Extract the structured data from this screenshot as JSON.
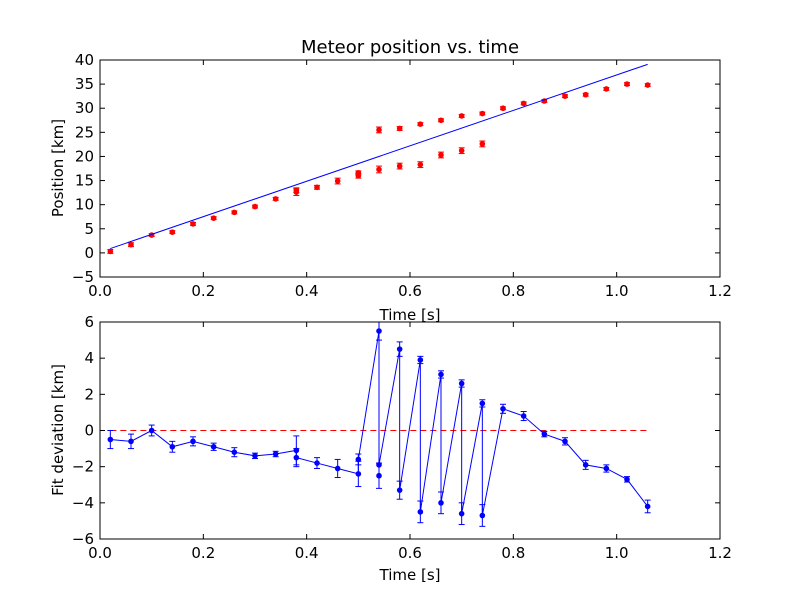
{
  "chart_data": [
    {
      "type": "scatter",
      "title": "Meteor position vs. time",
      "xlabel": "Time [s]",
      "ylabel": "Position [km]",
      "xlim": [
        0.0,
        1.2
      ],
      "ylim": [
        -5,
        40
      ],
      "xticks": [
        "0.0",
        "0.2",
        "0.4",
        "0.6",
        "0.8",
        "1.0",
        "1.2"
      ],
      "yticks": [
        "−5",
        "0",
        "5",
        "10",
        "15",
        "20",
        "25",
        "30",
        "35",
        "40"
      ],
      "grid": false,
      "series": [
        {
          "style": "points-with-errorbars",
          "color": "#ff0000",
          "points": [
            {
              "x": 0.02,
              "y": 0.3,
              "err": 0.4
            },
            {
              "x": 0.06,
              "y": 1.7,
              "err": 0.4
            },
            {
              "x": 0.1,
              "y": 3.7,
              "err": 0.3
            },
            {
              "x": 0.14,
              "y": 4.3,
              "err": 0.3
            },
            {
              "x": 0.18,
              "y": 6.0,
              "err": 0.3
            },
            {
              "x": 0.22,
              "y": 7.2,
              "err": 0.3
            },
            {
              "x": 0.26,
              "y": 8.4,
              "err": 0.3
            },
            {
              "x": 0.3,
              "y": 9.6,
              "err": 0.3
            },
            {
              "x": 0.34,
              "y": 11.2,
              "err": 0.3
            },
            {
              "x": 0.38,
              "y": 12.6,
              "err": 0.7
            },
            {
              "x": 0.38,
              "y": 13.0,
              "err": 0.5
            },
            {
              "x": 0.42,
              "y": 13.6,
              "err": 0.4
            },
            {
              "x": 0.46,
              "y": 14.9,
              "err": 0.6
            },
            {
              "x": 0.5,
              "y": 16.0,
              "err": 0.5
            },
            {
              "x": 0.5,
              "y": 16.6,
              "err": 0.4
            },
            {
              "x": 0.54,
              "y": 17.3,
              "err": 0.7
            },
            {
              "x": 0.54,
              "y": 25.5,
              "err": 0.6
            },
            {
              "x": 0.58,
              "y": 18.0,
              "err": 0.6
            },
            {
              "x": 0.58,
              "y": 25.8,
              "err": 0.4
            },
            {
              "x": 0.62,
              "y": 18.3,
              "err": 0.6
            },
            {
              "x": 0.62,
              "y": 26.7,
              "err": 0.3
            },
            {
              "x": 0.66,
              "y": 20.3,
              "err": 0.6
            },
            {
              "x": 0.66,
              "y": 27.5,
              "err": 0.3
            },
            {
              "x": 0.7,
              "y": 21.2,
              "err": 0.6
            },
            {
              "x": 0.7,
              "y": 28.4,
              "err": 0.3
            },
            {
              "x": 0.74,
              "y": 22.6,
              "err": 0.6
            },
            {
              "x": 0.74,
              "y": 28.9,
              "err": 0.3
            },
            {
              "x": 0.78,
              "y": 30.0,
              "err": 0.3
            },
            {
              "x": 0.82,
              "y": 31.0,
              "err": 0.3
            },
            {
              "x": 0.86,
              "y": 31.5,
              "err": 0.3
            },
            {
              "x": 0.9,
              "y": 32.5,
              "err": 0.3
            },
            {
              "x": 0.94,
              "y": 32.8,
              "err": 0.3
            },
            {
              "x": 0.98,
              "y": 34.0,
              "err": 0.3
            },
            {
              "x": 1.02,
              "y": 35.0,
              "err": 0.3
            },
            {
              "x": 1.06,
              "y": 34.8,
              "err": 0.3
            }
          ]
        },
        {
          "style": "line",
          "color": "#0000ff",
          "points": [
            {
              "x": 0.02,
              "y": 0.9
            },
            {
              "x": 1.06,
              "y": 39.1
            }
          ]
        }
      ]
    },
    {
      "type": "line",
      "xlabel": "Time [s]",
      "ylabel": "Fit deviation [km]",
      "xlim": [
        0.0,
        1.2
      ],
      "ylim": [
        -6,
        6
      ],
      "xticks": [
        "0.0",
        "0.2",
        "0.4",
        "0.6",
        "0.8",
        "1.0",
        "1.2"
      ],
      "yticks": [
        "−6",
        "−4",
        "−2",
        "0",
        "2",
        "4",
        "6"
      ],
      "grid": false,
      "reference_line": {
        "y": 0,
        "x_from": 0.02,
        "x_to": 1.06,
        "style": "dashed",
        "color": "#ff0000"
      },
      "series": [
        {
          "style": "line-points-errorbars",
          "color": "#0000ff",
          "points": [
            {
              "x": 0.02,
              "y": -0.5,
              "err": 0.5
            },
            {
              "x": 0.06,
              "y": -0.6,
              "err": 0.4
            },
            {
              "x": 0.1,
              "y": 0.0,
              "err": 0.3
            },
            {
              "x": 0.14,
              "y": -0.9,
              "err": 0.3
            },
            {
              "x": 0.18,
              "y": -0.6,
              "err": 0.25
            },
            {
              "x": 0.22,
              "y": -0.9,
              "err": 0.2
            },
            {
              "x": 0.26,
              "y": -1.2,
              "err": 0.25
            },
            {
              "x": 0.3,
              "y": -1.4,
              "err": 0.15
            },
            {
              "x": 0.34,
              "y": -1.3,
              "err": 0.15
            },
            {
              "x": 0.38,
              "y": -1.1,
              "err": 0.8
            },
            {
              "x": 0.38,
              "y": -1.5,
              "err": 0.5
            },
            {
              "x": 0.42,
              "y": -1.8,
              "err": 0.3
            },
            {
              "x": 0.46,
              "y": -2.1,
              "err": 0.5
            },
            {
              "x": 0.5,
              "y": -2.4,
              "err": 0.7
            },
            {
              "x": 0.5,
              "y": -1.6,
              "err": 0.3
            },
            {
              "x": 0.54,
              "y": 5.5,
              "err": 0.5
            },
            {
              "x": 0.54,
              "y": -2.5,
              "err": 0.7
            },
            {
              "x": 0.54,
              "y": -1.9,
              "err": 0.0
            },
            {
              "x": 0.58,
              "y": 4.5,
              "err": 0.4
            },
            {
              "x": 0.58,
              "y": -3.3,
              "err": 0.5
            },
            {
              "x": 0.62,
              "y": 3.9,
              "err": 0.2
            },
            {
              "x": 0.62,
              "y": -4.5,
              "err": 0.6
            },
            {
              "x": 0.66,
              "y": 3.1,
              "err": 0.2
            },
            {
              "x": 0.66,
              "y": -4.0,
              "err": 0.6
            },
            {
              "x": 0.7,
              "y": 2.6,
              "err": 0.2
            },
            {
              "x": 0.7,
              "y": -4.6,
              "err": 0.6
            },
            {
              "x": 0.74,
              "y": 1.5,
              "err": 0.2
            },
            {
              "x": 0.74,
              "y": -4.7,
              "err": 0.6
            },
            {
              "x": 0.78,
              "y": 1.2,
              "err": 0.25
            },
            {
              "x": 0.82,
              "y": 0.8,
              "err": 0.25
            },
            {
              "x": 0.86,
              "y": -0.2,
              "err": 0.15
            },
            {
              "x": 0.9,
              "y": -0.6,
              "err": 0.2
            },
            {
              "x": 0.94,
              "y": -1.9,
              "err": 0.25
            },
            {
              "x": 0.98,
              "y": -2.1,
              "err": 0.2
            },
            {
              "x": 1.02,
              "y": -2.7,
              "err": 0.15
            },
            {
              "x": 1.06,
              "y": -4.2,
              "err": 0.35
            }
          ]
        }
      ]
    }
  ]
}
